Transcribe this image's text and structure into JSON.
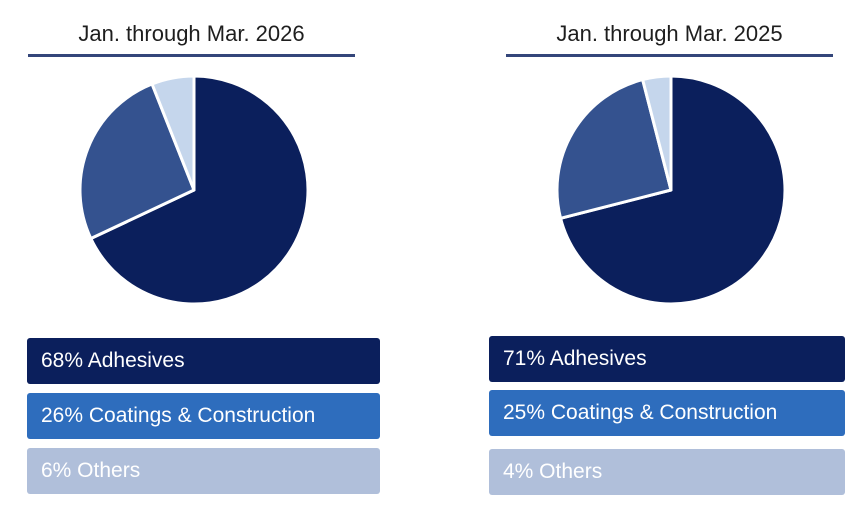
{
  "colors": {
    "adhesives": "#0b1f5c",
    "coatings_pie": "#34528f",
    "coatings_box": "#2e6dbd",
    "others_pie": "#c5d6ec",
    "others_box": "#b0bfda",
    "rule": "#34467a"
  },
  "chart_data": [
    {
      "type": "pie",
      "title": "Jan. through Mar. 2026",
      "categories": [
        "Adhesives",
        "Coatings & Construction",
        "Others"
      ],
      "values": [
        68,
        26,
        6
      ],
      "legend": [
        "68% Adhesives",
        "26% Coatings & Construction",
        "6% Others"
      ]
    },
    {
      "type": "pie",
      "title": "Jan. through Mar. 2025",
      "categories": [
        "Adhesives",
        "Coatings & Construction",
        "Others"
      ],
      "values": [
        71,
        25,
        4
      ],
      "legend": [
        "71% Adhesives",
        "25% Coatings & Construction",
        "4% Others"
      ]
    }
  ]
}
